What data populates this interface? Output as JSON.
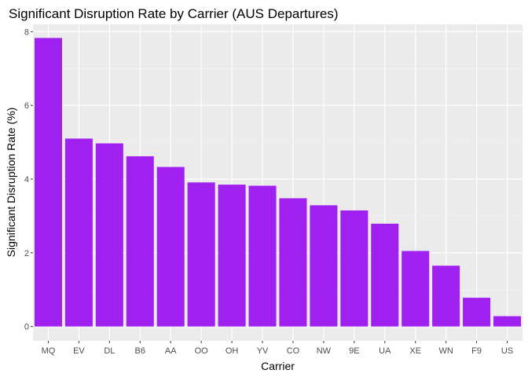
{
  "chart_data": {
    "type": "bar",
    "title": "Significant Disruption Rate by Carrier (AUS Departures)",
    "xlabel": "Carrier",
    "ylabel": "Significant Disruption Rate (%)",
    "categories": [
      "MQ",
      "EV",
      "DL",
      "B6",
      "AA",
      "OO",
      "OH",
      "YV",
      "CO",
      "NW",
      "9E",
      "UA",
      "XE",
      "WN",
      "F9",
      "US"
    ],
    "values": [
      7.83,
      5.1,
      4.97,
      4.62,
      4.33,
      3.91,
      3.85,
      3.82,
      3.48,
      3.29,
      3.15,
      2.79,
      2.05,
      1.65,
      0.78,
      0.28
    ],
    "ylim": [
      -0.39,
      8.2
    ],
    "yticks": [
      0,
      2,
      4,
      6,
      8
    ],
    "grid": true,
    "legend": "none",
    "colors": {
      "bar": "#A020F0",
      "panel": "#EBEBEB",
      "grid_major": "#FFFFFF",
      "grid_minor": "#F5F5F5",
      "tick_text": "#4D4D4D",
      "tick_mark": "#333333"
    }
  }
}
